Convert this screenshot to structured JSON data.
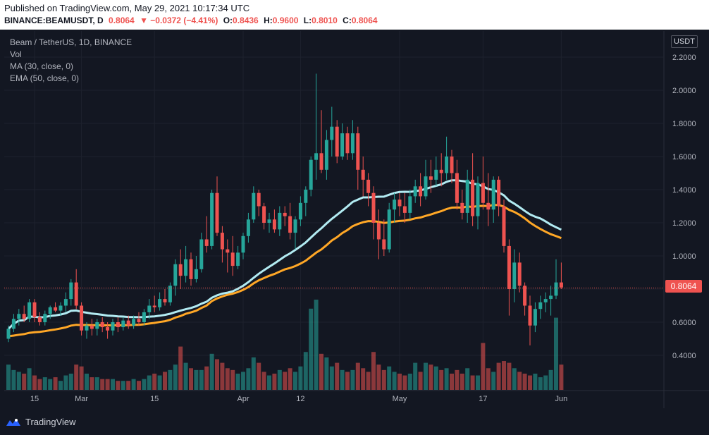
{
  "header": {
    "published": "Published on TradingView.com, May 29, 2021 10:17:34 UTC",
    "symbol": "BINANCE:BEAMUSDT, D",
    "last": "0.8064",
    "change": "▼ −0.0372 (−4.41%)",
    "o_label": "O:",
    "o_value": "0.8436",
    "h_label": "H:",
    "h_value": "0.9600",
    "l_label": "L:",
    "l_value": "0.8010",
    "c_label": "C:",
    "c_value": "0.8064"
  },
  "legend": {
    "title": "Beam / TetherUS, 1D, BINANCE",
    "vol": "Vol",
    "ma": "MA (30, close, 0)",
    "ema": "EMA (50, close, 0)"
  },
  "currency": "USDT",
  "last_price_tag": "0.8064",
  "footer": {
    "brand": "TradingView"
  },
  "colors": {
    "up": "#26a69a",
    "down": "#ef5350",
    "ma": "#b2ebf2",
    "ema": "#ffa726",
    "background": "#131722",
    "grid": "#1e222d"
  },
  "chart_data": {
    "type": "candlestick",
    "y_axis": {
      "ticks": [
        "2.2000",
        "2.0000",
        "1.8000",
        "1.6000",
        "1.4000",
        "1.2000",
        "1.0000",
        "0.8000",
        "0.6000",
        "0.4000"
      ],
      "tick_values": [
        2.2,
        2.0,
        1.8,
        1.6,
        1.4,
        1.2,
        1.0,
        0.8,
        0.6,
        0.4
      ],
      "range": [
        0.38,
        2.22
      ]
    },
    "x_axis": {
      "labels": [
        "15",
        "Mar",
        "15",
        "Apr",
        "12",
        "May",
        "17",
        "Jun"
      ],
      "label_day_index": [
        0,
        14,
        28,
        45,
        56,
        75,
        91,
        106
      ]
    },
    "last_price": 0.8064,
    "candles": [
      [
        0.5,
        0.58,
        0.48,
        0.56
      ],
      [
        0.56,
        0.65,
        0.54,
        0.62
      ],
      [
        0.62,
        0.68,
        0.58,
        0.65
      ],
      [
        0.65,
        0.7,
        0.6,
        0.62
      ],
      [
        0.62,
        0.74,
        0.6,
        0.72
      ],
      [
        0.72,
        0.74,
        0.6,
        0.63
      ],
      [
        0.63,
        0.66,
        0.58,
        0.6
      ],
      [
        0.6,
        0.67,
        0.58,
        0.65
      ],
      [
        0.65,
        0.7,
        0.62,
        0.69
      ],
      [
        0.69,
        0.72,
        0.66,
        0.67
      ],
      [
        0.67,
        0.72,
        0.64,
        0.7
      ],
      [
        0.7,
        0.78,
        0.66,
        0.74
      ],
      [
        0.74,
        0.86,
        0.7,
        0.84
      ],
      [
        0.84,
        0.92,
        0.68,
        0.7
      ],
      [
        0.7,
        0.72,
        0.52,
        0.55
      ],
      [
        0.55,
        0.6,
        0.5,
        0.58
      ],
      [
        0.58,
        0.62,
        0.52,
        0.56
      ],
      [
        0.56,
        0.62,
        0.52,
        0.6
      ],
      [
        0.6,
        0.63,
        0.54,
        0.57
      ],
      [
        0.57,
        0.6,
        0.5,
        0.55
      ],
      [
        0.55,
        0.62,
        0.52,
        0.6
      ],
      [
        0.6,
        0.63,
        0.54,
        0.57
      ],
      [
        0.57,
        0.63,
        0.55,
        0.61
      ],
      [
        0.61,
        0.64,
        0.56,
        0.58
      ],
      [
        0.58,
        0.64,
        0.56,
        0.62
      ],
      [
        0.62,
        0.66,
        0.58,
        0.6
      ],
      [
        0.6,
        0.68,
        0.58,
        0.66
      ],
      [
        0.66,
        0.74,
        0.62,
        0.7
      ],
      [
        0.7,
        0.76,
        0.66,
        0.69
      ],
      [
        0.69,
        0.78,
        0.67,
        0.74
      ],
      [
        0.74,
        0.8,
        0.7,
        0.72
      ],
      [
        0.72,
        0.84,
        0.7,
        0.82
      ],
      [
        0.82,
        0.98,
        0.76,
        0.95
      ],
      [
        0.95,
        1.04,
        0.8,
        0.88
      ],
      [
        0.88,
        1.06,
        0.84,
        0.98
      ],
      [
        0.98,
        1.02,
        0.82,
        0.86
      ],
      [
        0.86,
        1.0,
        0.84,
        0.92
      ],
      [
        0.92,
        1.14,
        0.9,
        1.1
      ],
      [
        1.1,
        1.24,
        1.02,
        1.06
      ],
      [
        1.06,
        1.4,
        1.04,
        1.38
      ],
      [
        1.38,
        1.48,
        1.12,
        1.14
      ],
      [
        1.14,
        1.18,
        0.96,
        1.04
      ],
      [
        1.04,
        1.1,
        0.9,
        1.02
      ],
      [
        1.02,
        1.12,
        0.88,
        0.94
      ],
      [
        0.94,
        1.06,
        0.92,
        1.02
      ],
      [
        1.02,
        1.14,
        0.98,
        1.12
      ],
      [
        1.12,
        1.26,
        1.08,
        1.22
      ],
      [
        1.22,
        1.42,
        1.2,
        1.38
      ],
      [
        1.38,
        1.4,
        1.24,
        1.3
      ],
      [
        1.3,
        1.32,
        1.16,
        1.2
      ],
      [
        1.2,
        1.26,
        1.14,
        1.22
      ],
      [
        1.22,
        1.28,
        1.14,
        1.16
      ],
      [
        1.16,
        1.3,
        1.12,
        1.26
      ],
      [
        1.26,
        1.3,
        1.18,
        1.24
      ],
      [
        1.24,
        1.32,
        1.1,
        1.14
      ],
      [
        1.14,
        1.24,
        1.04,
        1.22
      ],
      [
        1.22,
        1.36,
        1.18,
        1.32
      ],
      [
        1.32,
        1.42,
        1.24,
        1.4
      ],
      [
        1.4,
        1.6,
        1.36,
        1.58
      ],
      [
        1.58,
        2.1,
        1.46,
        1.62
      ],
      [
        1.62,
        1.88,
        1.5,
        1.52
      ],
      [
        1.52,
        1.76,
        1.46,
        1.7
      ],
      [
        1.7,
        1.9,
        1.6,
        1.78
      ],
      [
        1.78,
        1.82,
        1.56,
        1.6
      ],
      [
        1.6,
        1.8,
        1.58,
        1.74
      ],
      [
        1.74,
        1.78,
        1.58,
        1.62
      ],
      [
        1.62,
        1.82,
        1.58,
        1.74
      ],
      [
        1.74,
        1.78,
        1.4,
        1.52
      ],
      [
        1.52,
        1.6,
        1.36,
        1.46
      ],
      [
        1.46,
        1.5,
        1.3,
        1.38
      ],
      [
        1.38,
        1.42,
        1.1,
        1.2
      ],
      [
        1.2,
        1.28,
        0.98,
        1.1
      ],
      [
        1.1,
        1.22,
        1.0,
        1.04
      ],
      [
        1.04,
        1.32,
        1.02,
        1.28
      ],
      [
        1.28,
        1.38,
        1.2,
        1.34
      ],
      [
        1.34,
        1.38,
        1.24,
        1.3
      ],
      [
        1.3,
        1.38,
        1.2,
        1.26
      ],
      [
        1.26,
        1.4,
        1.22,
        1.36
      ],
      [
        1.36,
        1.46,
        1.32,
        1.42
      ],
      [
        1.42,
        1.5,
        1.3,
        1.36
      ],
      [
        1.36,
        1.58,
        1.34,
        1.48
      ],
      [
        1.48,
        1.58,
        1.38,
        1.46
      ],
      [
        1.46,
        1.6,
        1.42,
        1.52
      ],
      [
        1.52,
        1.62,
        1.42,
        1.5
      ],
      [
        1.5,
        1.72,
        1.46,
        1.6
      ],
      [
        1.6,
        1.64,
        1.44,
        1.5
      ],
      [
        1.5,
        1.58,
        1.28,
        1.32
      ],
      [
        1.32,
        1.4,
        1.22,
        1.26
      ],
      [
        1.26,
        1.52,
        1.2,
        1.46
      ],
      [
        1.46,
        1.62,
        1.18,
        1.24
      ],
      [
        1.24,
        1.48,
        1.16,
        1.44
      ],
      [
        1.44,
        1.6,
        1.28,
        1.32
      ],
      [
        1.32,
        1.5,
        1.18,
        1.28
      ],
      [
        1.28,
        1.48,
        1.2,
        1.46
      ],
      [
        1.46,
        1.48,
        1.24,
        1.3
      ],
      [
        1.3,
        1.34,
        1.02,
        1.06
      ],
      [
        1.06,
        1.1,
        0.64,
        0.8
      ],
      [
        0.8,
        1.04,
        0.72,
        0.96
      ],
      [
        0.96,
        1.02,
        0.78,
        0.82
      ],
      [
        0.82,
        0.84,
        0.64,
        0.7
      ],
      [
        0.7,
        0.76,
        0.46,
        0.58
      ],
      [
        0.58,
        0.72,
        0.54,
        0.68
      ],
      [
        0.68,
        0.76,
        0.62,
        0.72
      ],
      [
        0.72,
        0.78,
        0.66,
        0.74
      ],
      [
        0.74,
        0.82,
        0.64,
        0.76
      ],
      [
        0.76,
        0.98,
        0.74,
        0.84
      ],
      [
        0.84,
        0.96,
        0.8,
        0.81
      ]
    ],
    "volume": [
      0.28,
      0.22,
      0.2,
      0.18,
      0.24,
      0.16,
      0.12,
      0.14,
      0.12,
      0.14,
      0.1,
      0.16,
      0.18,
      0.28,
      0.26,
      0.18,
      0.14,
      0.14,
      0.12,
      0.12,
      0.12,
      0.1,
      0.1,
      0.1,
      0.12,
      0.1,
      0.12,
      0.16,
      0.18,
      0.16,
      0.2,
      0.22,
      0.28,
      0.48,
      0.3,
      0.24,
      0.22,
      0.22,
      0.26,
      0.4,
      0.34,
      0.3,
      0.24,
      0.22,
      0.18,
      0.2,
      0.24,
      0.36,
      0.3,
      0.2,
      0.16,
      0.18,
      0.22,
      0.2,
      0.24,
      0.2,
      0.26,
      0.42,
      0.9,
      1.0,
      0.4,
      0.36,
      0.26,
      0.3,
      0.22,
      0.2,
      0.22,
      0.3,
      0.24,
      0.2,
      0.42,
      0.28,
      0.22,
      0.26,
      0.2,
      0.18,
      0.16,
      0.18,
      0.3,
      0.2,
      0.3,
      0.28,
      0.26,
      0.22,
      0.24,
      0.18,
      0.22,
      0.18,
      0.24,
      0.16,
      0.16,
      0.52,
      0.24,
      0.2,
      0.3,
      0.32,
      0.3,
      0.24,
      0.2,
      0.18,
      0.16,
      0.18,
      0.14,
      0.16,
      0.22,
      0.8,
      0.28
    ]
  }
}
